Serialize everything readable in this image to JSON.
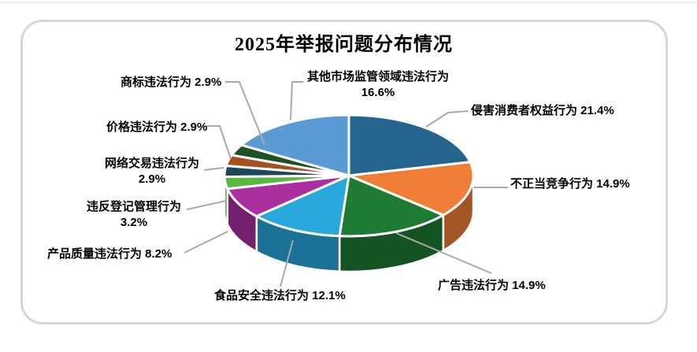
{
  "title": "2025年举报问题分布情况",
  "chart_data": {
    "type": "pie",
    "style": "3d",
    "title": "2025年举报问题分布情况",
    "unit": "%",
    "start_angle_deg": 0,
    "direction": "clockwise",
    "legend_position": "none",
    "slices": [
      {
        "label": "侵害消费者权益行为",
        "value": 21.4,
        "text": "侵害消费者权益行为 21.4%",
        "color": "#24648E"
      },
      {
        "label": "不正当竞争行为",
        "value": 14.9,
        "text": "不正当竞争行为 14.9%",
        "color": "#F07E36"
      },
      {
        "label": "广告违法行为",
        "value": 14.9,
        "text": "广告违法行为 14.9%",
        "color": "#1E7B33"
      },
      {
        "label": "食品安全违法行为",
        "value": 12.1,
        "text": "食品安全违法行为 12.1%",
        "color": "#29A8DC"
      },
      {
        "label": "产品质量违法行为",
        "value": 8.2,
        "text": "产品质量违法行为 8.2%",
        "color": "#AC2FA0"
      },
      {
        "label": "违反登记管理行为",
        "value": 3.2,
        "text": "违反登记管理行为 3.2%",
        "color": "#58B942"
      },
      {
        "label": "网络交易违法行为",
        "value": 2.9,
        "text": "网络交易违法行为 2.9%",
        "color": "#204459"
      },
      {
        "label": "价格违法行为",
        "value": 2.9,
        "text": "价格违法行为 2.9%",
        "color": "#A64F1F"
      },
      {
        "label": "商标违法行为",
        "value": 2.9,
        "text": "商标违法行为 2.9%",
        "color": "#1E5125"
      },
      {
        "label": "其他市场监管领域违法行为",
        "value": 16.6,
        "text": "其他市场监管领域违法行为 16.6%",
        "color": "#5B9BD5"
      }
    ],
    "colors": {
      "leader_line": "#A9A9A9",
      "slice_gap": "#FFFFFF",
      "panel_border": "#D6D6D6"
    }
  }
}
